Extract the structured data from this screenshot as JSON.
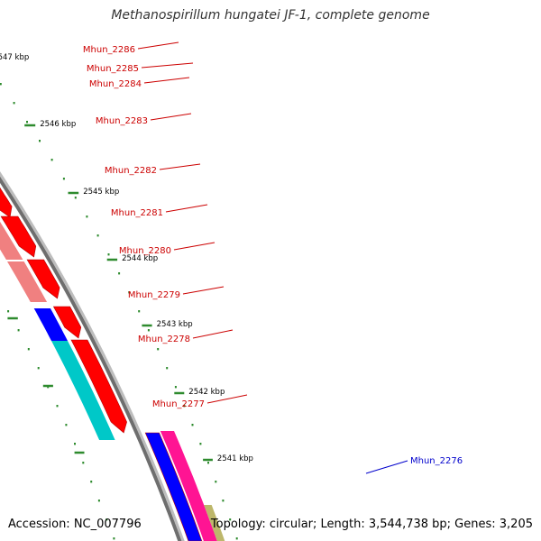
{
  "title": "Methanospirillum hungatei JF-1, complete genome",
  "footer": {
    "accession": "Accession: NC_007796",
    "summary": "Topology: circular; Length: 3,544,738 bp; Genes: 3,205"
  },
  "kbp_ticks": [
    {
      "label": "2547 kbp",
      "kbp": 2547
    },
    {
      "label": "2546 kbp",
      "kbp": 2546
    },
    {
      "label": "2545 kbp",
      "kbp": 2545
    },
    {
      "label": "2544 kbp",
      "kbp": 2544
    },
    {
      "label": "2543 kbp",
      "kbp": 2543
    },
    {
      "label": "2542 kbp",
      "kbp": 2542
    },
    {
      "label": "2541 kbp",
      "kbp": 2541
    }
  ],
  "genes": [
    {
      "name": "Mhun_2286",
      "color": "#ff0000",
      "label_color": "#cc0000"
    },
    {
      "name": "Mhun_2285",
      "color": "#ff0000",
      "label_color": "#cc0000"
    },
    {
      "name": "Mhun_2284",
      "color": "#ff0000",
      "label_color": "#cc0000"
    },
    {
      "name": "Mhun_2283",
      "color": "#ff0000",
      "label_color": "#cc0000"
    },
    {
      "name": "Mhun_2282",
      "color": "#ff0000",
      "label_color": "#cc0000"
    },
    {
      "name": "Mhun_2281",
      "color": "#ff0000",
      "label_color": "#cc0000"
    },
    {
      "name": "Mhun_2280",
      "color": "#ff0000",
      "label_color": "#cc0000"
    },
    {
      "name": "Mhun_2279",
      "color": "#ff0000",
      "label_color": "#cc0000"
    },
    {
      "name": "Mhun_2278",
      "color": "#ff0000",
      "label_color": "#cc0000"
    },
    {
      "name": "Mhun_2277",
      "color": "#ff0000",
      "label_color": "#cc0000"
    },
    {
      "name": "Mhun_2276",
      "color": "#0000ff",
      "label_color": "#0000cc"
    }
  ],
  "colors": {
    "backbone": "#8a8a8a",
    "tick": "#2e8b2e",
    "cog_olive": "#bdb76b",
    "cog_orange": "#ff8c00",
    "cog_salmon": "#f08080",
    "cog_blue": "#0000ff",
    "cog_cyan": "#00c8c8",
    "cog_pink": "#ff1493"
  }
}
